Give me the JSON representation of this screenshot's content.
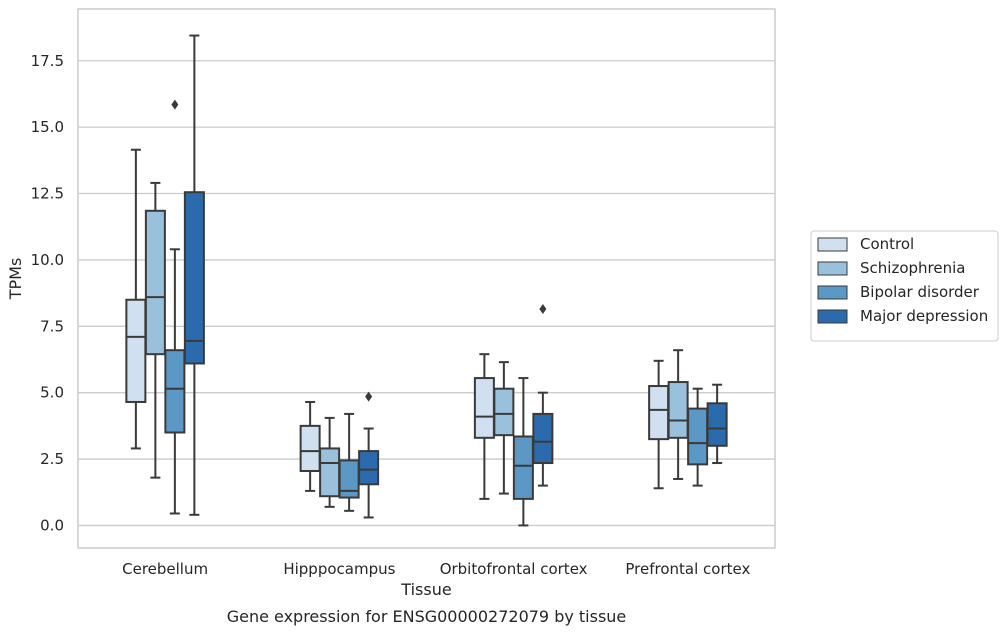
{
  "caption": "Gene expression for ENSG00000272079 by tissue",
  "chart_data": {
    "type": "boxplot",
    "xlabel": "Tissue",
    "ylabel": "TPMs",
    "ylim": [
      -0.85,
      19.45
    ],
    "yticks": [
      0.0,
      2.5,
      5.0,
      7.5,
      10.0,
      12.5,
      15.0,
      17.5
    ],
    "ytick_labels": [
      "0.0",
      "2.5",
      "5.0",
      "7.5",
      "10.0",
      "12.5",
      "15.0",
      "17.5"
    ],
    "grid": true,
    "legend_position": "right",
    "categories": [
      "Cerebellum",
      "Hipppocampus",
      "Orbitofrontal cortex",
      "Prefrontal cortex"
    ],
    "series": [
      {
        "name": "Control",
        "color": "#d0e0f0",
        "boxes": [
          {
            "whisker_low": 2.9,
            "q1": 4.65,
            "median": 7.1,
            "q3": 8.5,
            "whisker_high": 14.15,
            "outliers": []
          },
          {
            "whisker_low": 1.3,
            "q1": 2.05,
            "median": 2.8,
            "q3": 3.75,
            "whisker_high": 4.65,
            "outliers": []
          },
          {
            "whisker_low": 1.0,
            "q1": 3.3,
            "median": 4.1,
            "q3": 5.55,
            "whisker_high": 6.45,
            "outliers": []
          },
          {
            "whisker_low": 1.4,
            "q1": 3.25,
            "median": 4.35,
            "q3": 5.25,
            "whisker_high": 6.2,
            "outliers": []
          }
        ]
      },
      {
        "name": "Schizophrenia",
        "color": "#9ac1dc",
        "boxes": [
          {
            "whisker_low": 1.8,
            "q1": 6.45,
            "median": 8.6,
            "q3": 11.85,
            "whisker_high": 12.9,
            "outliers": []
          },
          {
            "whisker_low": 0.7,
            "q1": 1.1,
            "median": 2.35,
            "q3": 2.9,
            "whisker_high": 4.05,
            "outliers": []
          },
          {
            "whisker_low": 1.2,
            "q1": 3.4,
            "median": 4.2,
            "q3": 5.15,
            "whisker_high": 6.15,
            "outliers": []
          },
          {
            "whisker_low": 1.75,
            "q1": 3.3,
            "median": 3.95,
            "q3": 5.4,
            "whisker_high": 6.6,
            "outliers": []
          }
        ]
      },
      {
        "name": "Bipolar disorder",
        "color": "#5b98c6",
        "boxes": [
          {
            "whisker_low": 0.45,
            "q1": 3.5,
            "median": 5.15,
            "q3": 6.6,
            "whisker_high": 10.4,
            "outliers": [
              15.85
            ]
          },
          {
            "whisker_low": 0.55,
            "q1": 1.05,
            "median": 1.3,
            "q3": 2.45,
            "whisker_high": 4.2,
            "outliers": []
          },
          {
            "whisker_low": 0.0,
            "q1": 1.0,
            "median": 2.25,
            "q3": 3.35,
            "whisker_high": 5.55,
            "outliers": []
          },
          {
            "whisker_low": 1.5,
            "q1": 2.3,
            "median": 3.1,
            "q3": 4.4,
            "whisker_high": 5.15,
            "outliers": []
          }
        ]
      },
      {
        "name": "Major depression",
        "color": "#2a6aad",
        "boxes": [
          {
            "whisker_low": 0.4,
            "q1": 6.1,
            "median": 6.95,
            "q3": 12.55,
            "whisker_high": 18.45,
            "outliers": []
          },
          {
            "whisker_low": 0.3,
            "q1": 1.55,
            "median": 2.1,
            "q3": 2.8,
            "whisker_high": 3.65,
            "outliers": [
              4.85
            ]
          },
          {
            "whisker_low": 1.5,
            "q1": 2.35,
            "median": 3.15,
            "q3": 4.2,
            "whisker_high": 5.0,
            "outliers": [
              8.15
            ]
          },
          {
            "whisker_low": 2.35,
            "q1": 3.0,
            "median": 3.65,
            "q3": 4.6,
            "whisker_high": 5.3,
            "outliers": []
          }
        ]
      }
    ]
  }
}
